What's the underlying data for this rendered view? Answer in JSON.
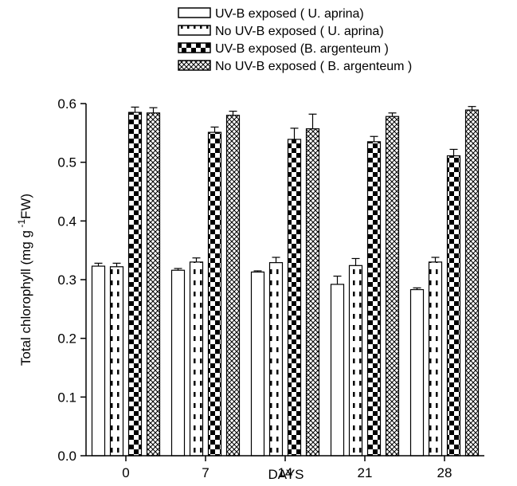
{
  "chart_data": {
    "type": "bar",
    "title": "",
    "xlabel": "DAYS",
    "ylabel": {
      "main": "Total chlorophyll (mg g",
      "sup": " -1",
      "tail": "FW)"
    },
    "categories": [
      "0",
      "7",
      "14",
      "21",
      "28"
    ],
    "ylim": [
      0.0,
      0.6
    ],
    "yticks": [
      "0.0",
      "0.1",
      "0.2",
      "0.3",
      "0.4",
      "0.5",
      "0.6"
    ],
    "legend_position": "top-center",
    "series": [
      {
        "name": "UV-B exposed ( U. aprina)",
        "pattern": "white",
        "values": [
          0.323,
          0.316,
          0.313,
          0.292,
          0.283
        ],
        "errors": [
          0.005,
          0.003,
          0.002,
          0.014,
          0.003
        ]
      },
      {
        "name": "No UV-B exposed ( U. aprina)",
        "pattern": "dashed-vertical",
        "values": [
          0.322,
          0.33,
          0.329,
          0.324,
          0.33
        ],
        "errors": [
          0.006,
          0.007,
          0.009,
          0.012,
          0.008
        ]
      },
      {
        "name": "UV-B exposed (B. argenteum )",
        "pattern": "checker",
        "values": [
          0.585,
          0.551,
          0.539,
          0.535,
          0.511
        ],
        "errors": [
          0.009,
          0.009,
          0.019,
          0.009,
          0.011
        ]
      },
      {
        "name": "No UV-B exposed ( B. argenteum )",
        "pattern": "crosshatch",
        "values": [
          0.584,
          0.58,
          0.557,
          0.578,
          0.589
        ],
        "errors": [
          0.009,
          0.007,
          0.025,
          0.006,
          0.006
        ]
      }
    ]
  }
}
